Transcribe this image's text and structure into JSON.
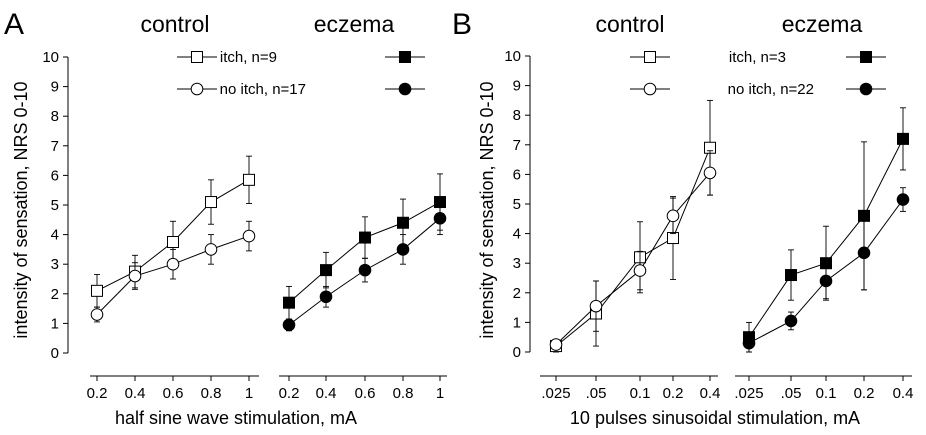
{
  "chart_data": [
    {
      "type": "line",
      "panel_label": "A",
      "ylabel": "intensity of sensation, NRS 0-10",
      "xlabel": "half sine wave stimulation, mA",
      "ylim": [
        0,
        10
      ],
      "yticks": [
        "0",
        "1",
        "2",
        "3",
        "4",
        "5",
        "6",
        "7",
        "8",
        "9",
        "10"
      ],
      "legend": {
        "itch_label": "itch, n=9",
        "noitch_label": "no itch, n=17"
      },
      "groups": [
        {
          "title": "control",
          "categories": [
            "0.2",
            "0.4",
            "0.6",
            "0.8",
            "1"
          ],
          "series": [
            {
              "key": "itch",
              "marker": "square",
              "filled": false,
              "values": [
                2.1,
                2.75,
                3.75,
                5.1,
                5.85
              ],
              "errors": [
                0.55,
                0.55,
                0.7,
                0.75,
                0.8
              ]
            },
            {
              "key": "no-itch",
              "marker": "circle",
              "filled": false,
              "values": [
                1.3,
                2.6,
                3.0,
                3.5,
                3.95
              ],
              "errors": [
                0.25,
                0.45,
                0.5,
                0.5,
                0.5
              ]
            }
          ]
        },
        {
          "title": "eczema",
          "categories": [
            "0.2",
            "0.4",
            "0.6",
            "0.8",
            "1"
          ],
          "series": [
            {
              "key": "itch",
              "marker": "square",
              "filled": true,
              "values": [
                1.7,
                2.8,
                3.9,
                4.4,
                5.1
              ],
              "errors": [
                0.55,
                0.6,
                0.7,
                0.8,
                0.95
              ]
            },
            {
              "key": "no-itch",
              "marker": "circle",
              "filled": true,
              "values": [
                0.95,
                1.9,
                2.8,
                3.5,
                4.55
              ],
              "errors": [
                0.2,
                0.35,
                0.4,
                0.5,
                0.55
              ]
            }
          ]
        }
      ]
    },
    {
      "type": "line",
      "panel_label": "B",
      "ylabel": "intensity of sensation, NRS 0-10",
      "xlabel": "10 pulses sinusoidal stimulation, mA",
      "ylim": [
        0,
        10
      ],
      "yticks": [
        "0",
        "1",
        "2",
        "3",
        "4",
        "5",
        "6",
        "7",
        "8",
        "9",
        "10"
      ],
      "legend": {
        "itch_label": "itch, n=3",
        "noitch_label": "no itch, n=22"
      },
      "groups": [
        {
          "title": "control",
          "categories": [
            ".025",
            ".05",
            "0.1",
            "0.2",
            "0.4"
          ],
          "series": [
            {
              "key": "itch",
              "marker": "square",
              "filled": false,
              "values": [
                0.2,
                1.3,
                3.2,
                3.85,
                6.9
              ],
              "errors": [
                0.2,
                1.1,
                1.2,
                1.4,
                1.6
              ]
            },
            {
              "key": "no-itch",
              "marker": "circle",
              "filled": false,
              "values": [
                0.25,
                1.55,
                2.75,
                4.6,
                6.05
              ],
              "errors": [
                0.15,
                0.85,
                0.65,
                0.6,
                0.75
              ]
            }
          ]
        },
        {
          "title": "eczema",
          "categories": [
            ".025",
            ".05",
            "0.1",
            "0.2",
            "0.4"
          ],
          "series": [
            {
              "key": "itch",
              "marker": "square",
              "filled": true,
              "values": [
                0.5,
                2.6,
                3.0,
                4.6,
                7.2
              ],
              "errors": [
                0.5,
                0.85,
                1.25,
                2.5,
                1.05
              ]
            },
            {
              "key": "no-itch",
              "marker": "circle",
              "filled": true,
              "values": [
                0.3,
                1.05,
                2.4,
                3.35,
                5.15
              ],
              "errors": [
                0.3,
                0.3,
                0.6,
                1.25,
                0.4
              ]
            }
          ]
        }
      ]
    }
  ]
}
